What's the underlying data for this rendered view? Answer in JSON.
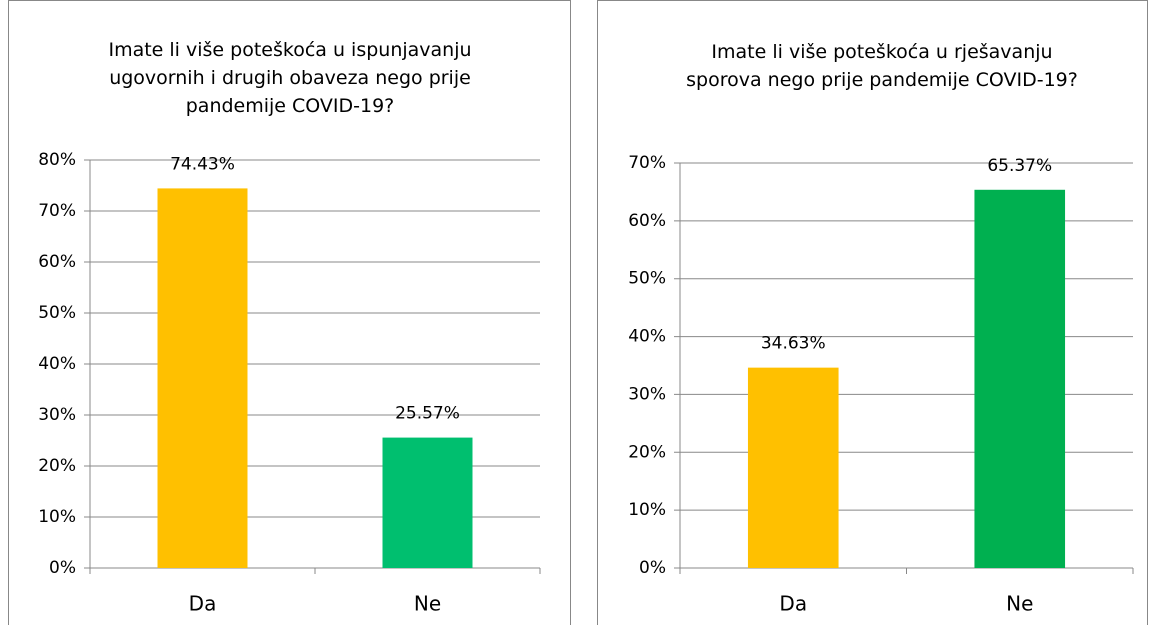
{
  "chart_data": [
    {
      "type": "bar",
      "title": "Imate li više poteškoća u ispunjavanju ugovornih i drugih obaveza nego prije pandemije COVID-19?",
      "categories": [
        "Da",
        "Ne"
      ],
      "values": [
        74.43,
        25.57
      ],
      "value_labels": [
        "74.43%",
        "25.57%"
      ],
      "colors": [
        "#FFC000",
        "#00BF6F"
      ],
      "ylim": [
        0,
        80
      ],
      "yticks": [
        {
          "value": 0,
          "label": "0%"
        },
        {
          "value": 10,
          "label": "10%"
        },
        {
          "value": 20,
          "label": "20%"
        },
        {
          "value": 30,
          "label": "30%"
        },
        {
          "value": 40,
          "label": "40%"
        },
        {
          "value": 50,
          "label": "50%"
        },
        {
          "value": 60,
          "label": "60%"
        },
        {
          "value": 70,
          "label": "70%"
        },
        {
          "value": 80,
          "label": "80%"
        }
      ],
      "grid": true
    },
    {
      "type": "bar",
      "title": "Imate li više poteškoća u rješavanju sporova nego prije pandemije COVID-19?",
      "categories": [
        "Da",
        "Ne"
      ],
      "values": [
        34.63,
        65.37
      ],
      "value_labels": [
        "34.63%",
        "65.37%"
      ],
      "colors": [
        "#FFC000",
        "#00B050"
      ],
      "ylim": [
        0,
        70
      ],
      "yticks": [
        {
          "value": 0,
          "label": "0%"
        },
        {
          "value": 10,
          "label": "10%"
        },
        {
          "value": 20,
          "label": "20%"
        },
        {
          "value": 30,
          "label": "30%"
        },
        {
          "value": 40,
          "label": "40%"
        },
        {
          "value": 50,
          "label": "50%"
        },
        {
          "value": 60,
          "label": "60%"
        },
        {
          "value": 70,
          "label": "70%"
        }
      ],
      "grid": true
    }
  ]
}
